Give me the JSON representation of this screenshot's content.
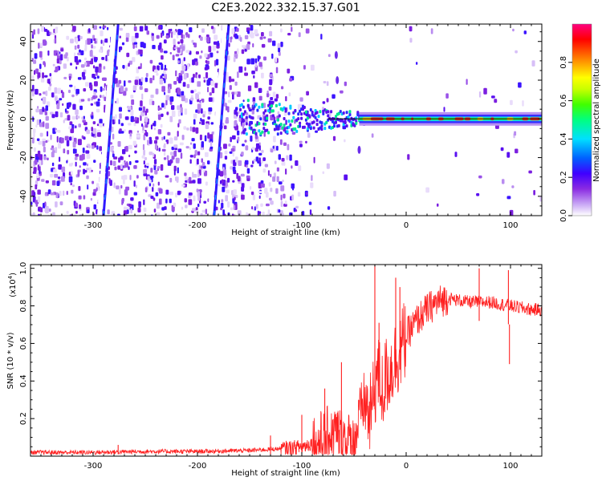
{
  "title": "C2E3.2022.332.15.37.G01",
  "chart_data": [
    {
      "type": "heatmap",
      "xlabel": "Height of straight line (km)",
      "ylabel": "Frequency (Hz)",
      "xlim": [
        -360,
        130
      ],
      "ylim": [
        -50,
        49
      ],
      "xticks": [
        -300,
        -200,
        -100,
        0,
        100
      ],
      "yticks": [
        -40,
        -20,
        0,
        20,
        40
      ],
      "colorbar": {
        "label": "Normalized spectral amplitude",
        "range": [
          0,
          1
        ],
        "ticks": [
          0.0,
          0.2,
          0.4,
          0.6,
          0.8
        ],
        "colors": [
          "#ffffff",
          "#c9a7f5",
          "#8a2be2",
          "#3f00ff",
          "#0060ff",
          "#00e0ff",
          "#00ff80",
          "#40ff00",
          "#c8ff00",
          "#ffff00",
          "#ff8000",
          "#ff0000",
          "#ff0080"
        ]
      },
      "features": {
        "streaks": [
          {
            "x_bottom": -290,
            "x_top": -276
          },
          {
            "x_bottom": -184,
            "x_top": -170
          }
        ],
        "signal_band": {
          "x_start": -160,
          "x_end": 130,
          "center_frequency": 0,
          "half_width_start": 10,
          "half_width_end": 2
        },
        "isolated_patches": [
          {
            "x": -67,
            "y": 33
          },
          {
            "x": -66,
            "y": 20
          },
          {
            "x": -45,
            "y": -16
          }
        ]
      }
    },
    {
      "type": "line",
      "xlabel": "Height of straight line (km)",
      "ylabel": "SNR (10 * v/v)",
      "scale_label": "(x10",
      "scale_exponent": "4",
      "scale_close": ")",
      "xlim": [
        -360,
        130
      ],
      "ylim": [
        0,
        1.02
      ],
      "xticks": [
        -300,
        -200,
        -100,
        0,
        100
      ],
      "yticks": [
        0.2,
        0.4,
        0.6,
        0.8,
        1.0
      ],
      "series": [
        {
          "color": "#ff2020",
          "profile_x": [
            -360,
            -300,
            -250,
            -200,
            -150,
            -120,
            -100,
            -90,
            -80,
            -70,
            -60,
            -55,
            -50,
            -45,
            -40,
            -35,
            -30,
            -28,
            -25,
            -22,
            -20,
            -15,
            -10,
            -5,
            0,
            10,
            20,
            30,
            40,
            50,
            60,
            70,
            80,
            90,
            100,
            110,
            120,
            130
          ],
          "profile_y": [
            0.02,
            0.02,
            0.025,
            0.025,
            0.03,
            0.04,
            0.05,
            0.07,
            0.09,
            0.13,
            0.1,
            0.08,
            0.06,
            0.2,
            0.3,
            0.2,
            0.35,
            0.45,
            0.4,
            0.33,
            0.42,
            0.46,
            0.52,
            0.57,
            0.64,
            0.72,
            0.78,
            0.82,
            0.84,
            0.83,
            0.82,
            0.82,
            0.82,
            0.81,
            0.8,
            0.79,
            0.78,
            0.78
          ],
          "spikes": [
            {
              "x": -276,
              "y": 0.06
            },
            {
              "x": -130,
              "y": 0.11
            },
            {
              "x": -100,
              "y": 0.22
            },
            {
              "x": -78,
              "y": 0.36
            },
            {
              "x": -62,
              "y": 0.5
            },
            {
              "x": -30,
              "y": 1.02
            },
            {
              "x": -26,
              "y": 0.71
            },
            {
              "x": -10,
              "y": 0.95
            },
            {
              "x": -6,
              "y": 0.9
            },
            {
              "x": 70,
              "y": 1.0
            },
            {
              "x": 98,
              "y": 0.99
            },
            {
              "x": 99,
              "y": 0.49
            }
          ]
        }
      ]
    }
  ]
}
